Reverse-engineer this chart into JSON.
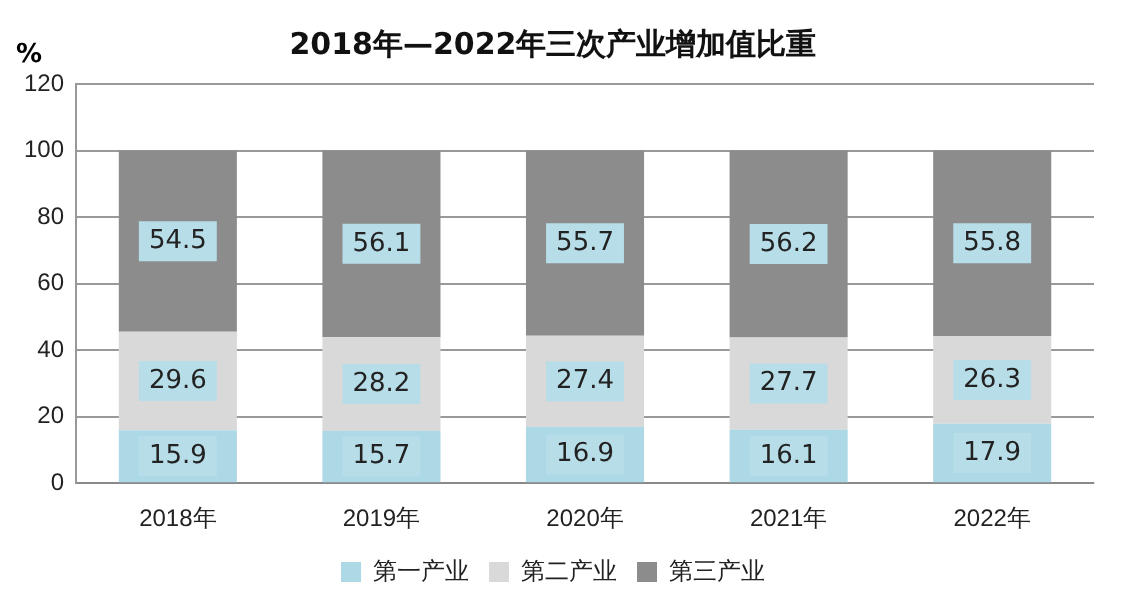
{
  "chart_data": {
    "type": "bar",
    "title": "2018年—2022年三次产业增加值比重",
    "ylabel": "%",
    "categories": [
      "2018年",
      "2019年",
      "2020年",
      "2021年",
      "2022年"
    ],
    "series": [
      {
        "name": "第一产业",
        "color": "#add8e6",
        "values": [
          15.9,
          15.7,
          16.9,
          16.1,
          17.9
        ]
      },
      {
        "name": "第二产业",
        "color": "#d9d9d9",
        "values": [
          29.6,
          28.2,
          27.4,
          27.7,
          26.3
        ]
      },
      {
        "name": "第三产业",
        "color": "#8c8c8c",
        "values": [
          54.5,
          56.1,
          55.7,
          56.2,
          55.8
        ]
      }
    ],
    "stacked": true,
    "ylim": [
      0,
      120
    ],
    "yticks": [
      0,
      20,
      40,
      60,
      80,
      100,
      120
    ],
    "grid": "y",
    "legend": "bottom",
    "data_labels": true
  }
}
